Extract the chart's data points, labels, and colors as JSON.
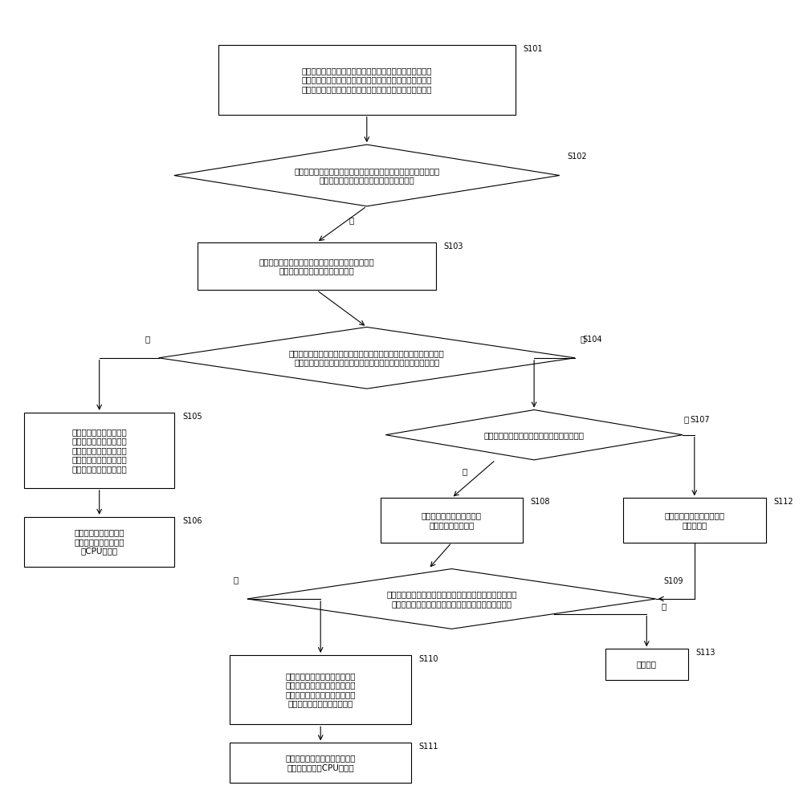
{
  "bg_color": "#ffffff",
  "line_color": "#000000",
  "box_color": "#ffffff",
  "text_color": "#000000",
  "font_size": 7.5,
  "s101_text": "当接收到携带有测试时段的测试通知时，根据嵌入式实时操\n作系统的系统时间实时更新预设标识的状态，并在嵌入式实\n时操作系统的空闲任务运行线程之前添加第一接口函数线程",
  "s102_text": "开启第一接口函数线程，并根据嵌入式实时操作系统的第一当前系\n统时间判断预设标识的状态是否为无效状态",
  "s103_text": "当第一当前系统时间在测试时段内时，将第一当前系\n统时间确定为空闲任务的启动时间",
  "s104_text": "开启空闲任务运行线程，并在运行空闲任务过程中根据嵌入式实时操作\n系统的第二当前系统时间判断预设标识的状态是否为第一有效状态",
  "s105_text": "将第二当前系统时间确定\n为空闲任务的结束时间，\n并根据空闲任务的启动时\n间和空闲任务的结束时间\n计算空闲任务的运行时长",
  "s106_text": "根据空闲任务的运行时\n长和测试时段的时长计\n算CPU负载率",
  "s107_text": "判断嵌入式实时操作系统中是否存在任务抢占",
  "s108_text": "在空闲任务运行线程之后添\n加第二接口函数线程",
  "s109_text": "开启第二接口函数线程，并根据嵌入式实时操作系统的第三\n当前系统时间判断预设标识的状态是否为第二有效状态",
  "s110_text": "将第三当前系统时间确定为空闲\n任务的结束时间，并根据空闲任\n务的启动时间和空闲任务的结束\n时间计算空闲任务的运行时长",
  "s111_text": "根据空闲任务的运行时长和测试\n时段的时长计算CPU负载率",
  "s112_text": "开启空闲任务运行线程并运\n行空闲任务",
  "s113_text": "退出计算",
  "yes": "是",
  "no": "否"
}
